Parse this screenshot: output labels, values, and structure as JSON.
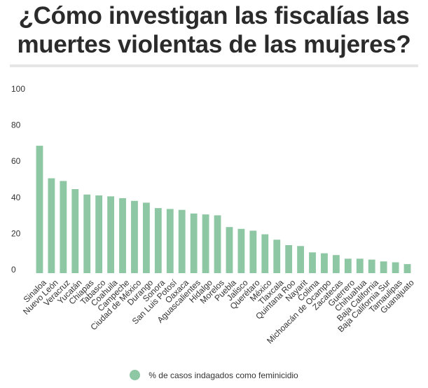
{
  "title": "¿Cómo investigan las fiscalías las muertes violentas de las mujeres?",
  "colors": {
    "bar": "#8ec7a3",
    "title": "#2b2b2b",
    "rule": "#e6e6e6"
  },
  "chart_data": {
    "type": "bar",
    "title": "¿Cómo investigan las fiscalías las muertes violentas de las mujeres?",
    "xlabel": "",
    "ylabel": "",
    "ylim": [
      0,
      100
    ],
    "yticks": [
      0,
      20,
      40,
      60,
      80,
      100
    ],
    "grid": false,
    "legend_position": "bottom",
    "categories": [
      "Sinaloa",
      "Nuevo León",
      "Veracruz",
      "Yucatán",
      "Chiapas",
      "Tabasco",
      "Coahuila",
      "Campeche",
      "Ciudad de México",
      "Durango",
      "Sonora",
      "San Luis Potosí",
      "Oaxaca",
      "Aguascalientes",
      "Hidalgo",
      "Morelos",
      "Puebla",
      "Jalisco",
      "Querétaro",
      "México",
      "Tlaxcala",
      "Quintana Roo",
      "Nayarit",
      "Colima",
      "Michoacán de Ocampo",
      "Zacatecas",
      "Guerrero",
      "Chihuahua",
      "Baja California",
      "Baja California Sur",
      "Tamaulipas",
      "Guanajuato"
    ],
    "series": [
      {
        "name": "% de casos indagados como feminicidio",
        "values": [
          70.5,
          52.5,
          51,
          46.5,
          43.5,
          43,
          42.5,
          41.5,
          40,
          39,
          36,
          35.5,
          35,
          33,
          32.5,
          32,
          25.5,
          24.5,
          23.5,
          21.5,
          18.5,
          15.5,
          15,
          11.5,
          11,
          10,
          8,
          8,
          7.5,
          6.5,
          6,
          5
        ]
      }
    ]
  }
}
